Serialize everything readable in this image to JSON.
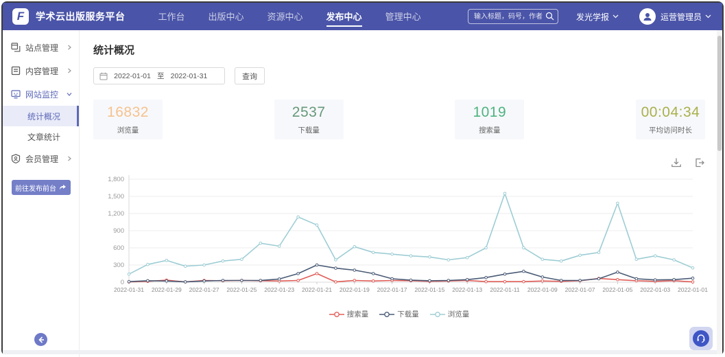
{
  "navbar": {
    "logo": "F",
    "title": "学术云出版服务平台",
    "items": [
      {
        "label": "工作台",
        "active": false
      },
      {
        "label": "出版中心",
        "active": false
      },
      {
        "label": "资源中心",
        "active": false
      },
      {
        "label": "发布中心",
        "active": true
      },
      {
        "label": "管理中心",
        "active": false
      }
    ],
    "search_placeholder": "输入标题，码号，作者",
    "journal_select": "发光学报",
    "user_name": "运营管理员"
  },
  "sidebar": {
    "items": [
      {
        "label": "站点管理",
        "icon": "site-icon",
        "expanded": false,
        "active": false,
        "children": []
      },
      {
        "label": "内容管理",
        "icon": "content-icon",
        "expanded": false,
        "active": false,
        "children": []
      },
      {
        "label": "网站监控",
        "icon": "monitor-icon",
        "expanded": true,
        "active": true,
        "children": [
          {
            "label": "统计概况",
            "selected": true
          },
          {
            "label": "文章统计",
            "selected": false
          }
        ]
      },
      {
        "label": "会员管理",
        "icon": "member-icon",
        "expanded": false,
        "active": false,
        "children": []
      }
    ],
    "cta_label": "前往发布前台"
  },
  "main": {
    "page_title": "统计概况",
    "date_from": "2022-01-01",
    "date_sep": "至",
    "date_to": "2022-01-31",
    "query_label": "查询",
    "stats": [
      {
        "value": "16832",
        "label": "浏览量",
        "color": "#f6c28e"
      },
      {
        "value": "2537",
        "label": "下载量",
        "color": "#67997b"
      },
      {
        "value": "1019",
        "label": "搜索量",
        "color": "#4eb381"
      },
      {
        "value": "00:04:34",
        "label": "平均访问时长",
        "color": "#a9b04b"
      }
    ],
    "tool_icons": [
      "download-icon",
      "export-icon"
    ]
  },
  "chart_data": {
    "type": "line",
    "x": [
      "2022-01-31",
      "2022-01-30",
      "2022-01-29",
      "2022-01-28",
      "2022-01-27",
      "2022-01-26",
      "2022-01-25",
      "2022-01-24",
      "2022-01-23",
      "2022-01-22",
      "2022-01-21",
      "2022-01-20",
      "2022-01-19",
      "2022-01-18",
      "2022-01-17",
      "2022-01-16",
      "2022-01-15",
      "2022-01-14",
      "2022-01-13",
      "2022-01-12",
      "2022-01-11",
      "2022-01-10",
      "2022-01-09",
      "2022-01-08",
      "2022-01-07",
      "2022-01-06",
      "2022-01-05",
      "2022-01-04",
      "2022-01-03",
      "2022-01-02",
      "2022-01-01"
    ],
    "series": [
      {
        "name": "搜索量",
        "color": "#e15d58",
        "values": [
          5,
          15,
          35,
          5,
          30,
          25,
          30,
          25,
          20,
          30,
          150,
          5,
          30,
          20,
          30,
          25,
          15,
          20,
          30,
          10,
          10,
          10,
          20,
          15,
          25,
          65,
          45,
          25,
          15,
          25,
          5
        ]
      },
      {
        "name": "下载量",
        "color": "#4a5b76",
        "values": [
          10,
          25,
          20,
          5,
          20,
          30,
          30,
          30,
          55,
          150,
          300,
          245,
          210,
          150,
          60,
          35,
          25,
          30,
          45,
          80,
          140,
          190,
          90,
          30,
          30,
          60,
          175,
          60,
          40,
          45,
          70
        ]
      },
      {
        "name": "浏览量",
        "color": "#9dcdd4",
        "values": [
          140,
          310,
          380,
          280,
          300,
          370,
          400,
          680,
          630,
          1140,
          1000,
          390,
          620,
          520,
          490,
          460,
          440,
          390,
          430,
          600,
          1550,
          600,
          400,
          370,
          470,
          520,
          1380,
          400,
          460,
          390,
          250
        ]
      }
    ],
    "ylim": [
      0,
      1800
    ],
    "yticks": [
      0,
      300,
      600,
      900,
      1200,
      1500,
      1800
    ],
    "ytick_labels": [
      "0",
      "300",
      "600",
      "900",
      "1,200",
      "1,500",
      "1,800"
    ],
    "x_label_every": 2,
    "grid": true,
    "legend_position": "bottom"
  }
}
